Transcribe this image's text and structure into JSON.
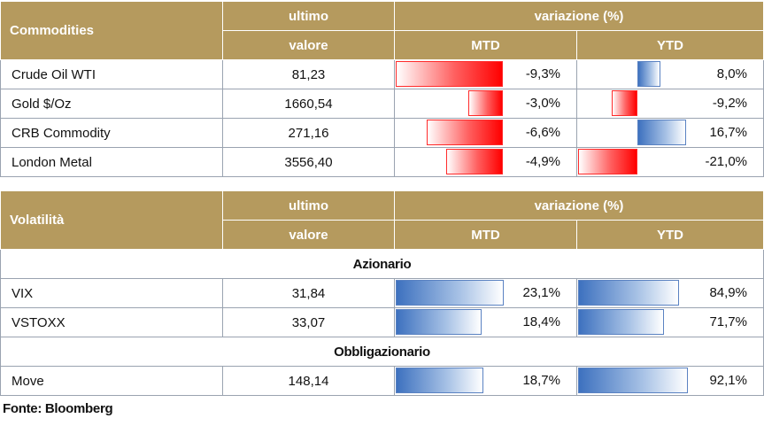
{
  "commodities": {
    "header": {
      "name": "Commodities",
      "last_top": "ultimo",
      "last_bottom": "valore",
      "change": "variazione (%)",
      "mtd": "MTD",
      "ytd": "YTD"
    },
    "rows": [
      {
        "name": "Crude Oil WTI",
        "value": "81,23",
        "mtd": "-9,3%",
        "ytd": "8,0%",
        "mtd_num": -9.3,
        "ytd_num": 8.0
      },
      {
        "name": "Gold $/Oz",
        "value": "1660,54",
        "mtd": "-3,0%",
        "ytd": "-9,2%",
        "mtd_num": -3.0,
        "ytd_num": -9.2
      },
      {
        "name": "CRB Commodity",
        "value": "271,16",
        "mtd": "-6,6%",
        "ytd": "16,7%",
        "mtd_num": -6.6,
        "ytd_num": 16.7
      },
      {
        "name": "London Metal",
        "value": "3556,40",
        "mtd": "-4,9%",
        "ytd": "-21,0%",
        "mtd_num": -4.9,
        "ytd_num": -21.0
      }
    ]
  },
  "volatility": {
    "header": {
      "name": "Volatilità",
      "last_top": "ultimo",
      "last_bottom": "valore",
      "change": "variazione (%)",
      "mtd": "MTD",
      "ytd": "YTD"
    },
    "sections": [
      {
        "title": "Azionario",
        "rows": [
          {
            "name": "VIX",
            "value": "31,84",
            "mtd": "23,1%",
            "ytd": "84,9%",
            "mtd_num": 23.1,
            "ytd_num": 84.9
          },
          {
            "name": "VSTOXX",
            "value": "33,07",
            "mtd": "18,4%",
            "ytd": "71,7%",
            "mtd_num": 18.4,
            "ytd_num": 71.7
          }
        ]
      },
      {
        "title": "Obbligazionario",
        "rows": [
          {
            "name": "Move",
            "value": "148,14",
            "mtd": "18,7%",
            "ytd": "92,1%",
            "mtd_num": 18.7,
            "ytd_num": 92.1
          }
        ]
      }
    ]
  },
  "source": "Fonte: Bloomberg",
  "colors": {
    "header_bg": "#b59a5e",
    "negative_bar": "#ff0000",
    "positive_bar": "#3d71bf"
  }
}
